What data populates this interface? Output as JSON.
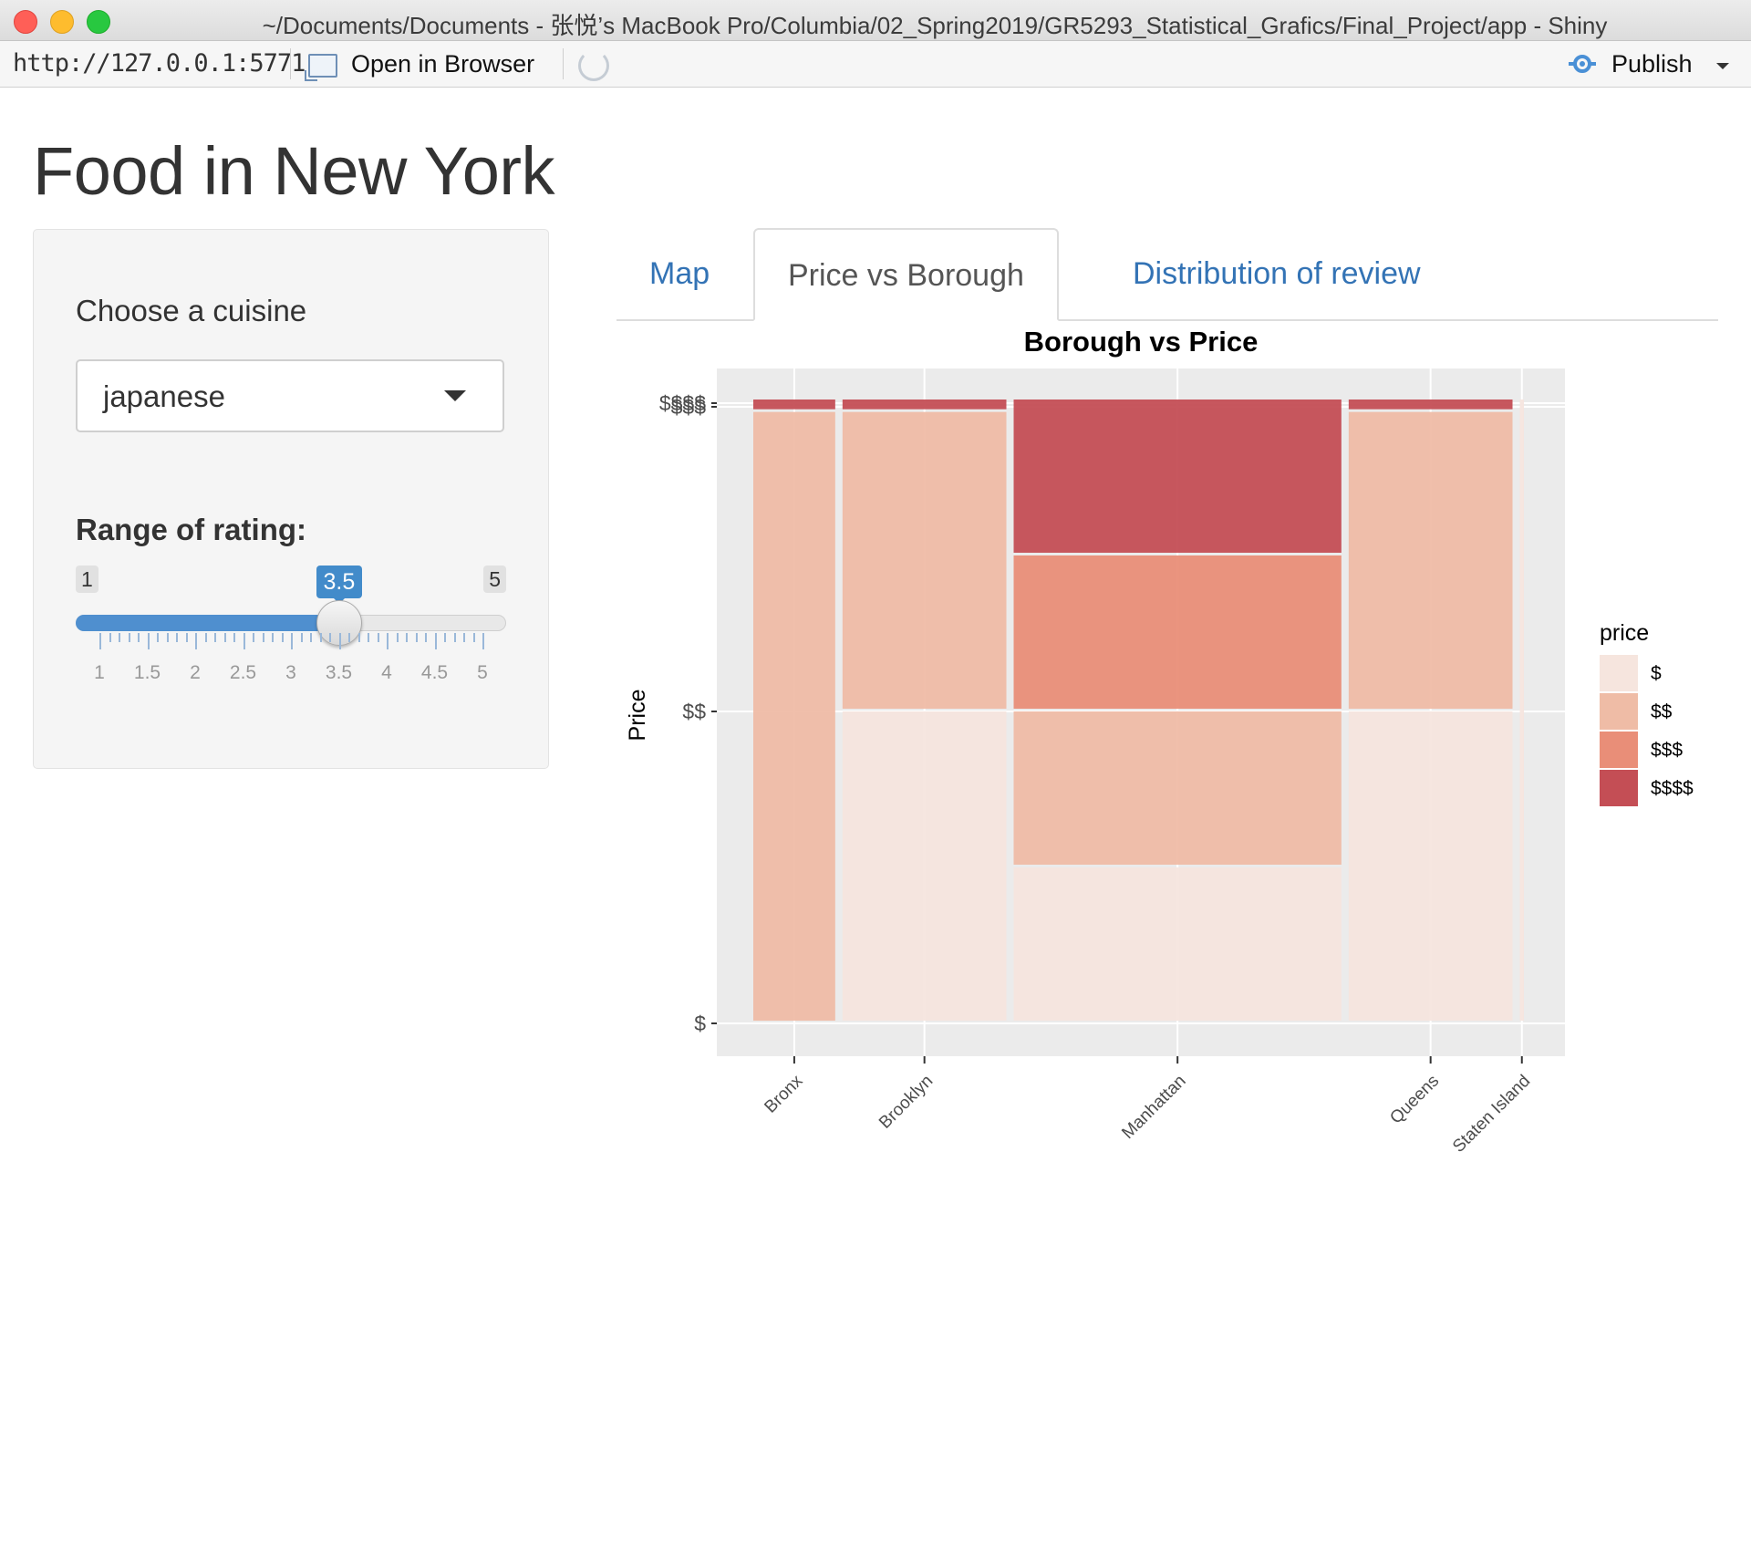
{
  "window": {
    "title": "~/Documents/Documents - 张悦’s MacBook Pro/Columbia/02_Spring2019/GR5293_Statistical_Grafics/Final_Project/app - Shiny"
  },
  "toolbar": {
    "url": "http://127.0.0.1:5771",
    "open_label": "Open in Browser",
    "publish_label": "Publish"
  },
  "page": {
    "title": "Food in New York"
  },
  "sidebar": {
    "cuisine_label": "Choose a cuisine",
    "cuisine_value": "japanese",
    "rating_label": "Range of rating:",
    "slider": {
      "min": 1,
      "max": 5,
      "value": 3.5,
      "min_label": "1",
      "max_label": "5",
      "value_label": "3.5",
      "grid_labels": [
        "1",
        "1.5",
        "2",
        "2.5",
        "3",
        "3.5",
        "4",
        "4.5",
        "5"
      ]
    }
  },
  "tabs": [
    {
      "label": "Map",
      "active": false
    },
    {
      "label": "Price vs Borough",
      "active": true
    },
    {
      "label": "Distribution of review",
      "active": false
    }
  ],
  "chart_data": {
    "type": "mosaic",
    "title": "Borough vs Price",
    "ylabel": "Price",
    "xlabel": "",
    "categories": [
      "Bronx",
      "Brooklyn",
      "Manhattan",
      "Queens",
      "Staten Island"
    ],
    "category_widths": [
      0.1,
      0.2,
      0.4,
      0.2,
      0.005
    ],
    "y_tick_labels": [
      "$",
      "$$",
      "$$$",
      "$$$$"
    ],
    "legend": {
      "title": "price",
      "placement": "right",
      "items": [
        {
          "label": "$",
          "color": "#f6e5de"
        },
        {
          "label": "$$",
          "color": "#efbca6"
        },
        {
          "label": "$$$",
          "color": "#e98e78"
        },
        {
          "label": "$$$$",
          "color": "#c44e55"
        }
      ]
    },
    "series": [
      {
        "name": "$",
        "values": [
          0.0,
          0.5,
          0.25,
          0.5,
          1.0
        ]
      },
      {
        "name": "$$",
        "values": [
          0.98,
          0.48,
          0.25,
          0.48,
          0.0
        ]
      },
      {
        "name": "$$$",
        "values": [
          0.0,
          0.0,
          0.25,
          0.0,
          0.0
        ]
      },
      {
        "name": "$$$$",
        "values": [
          0.02,
          0.02,
          0.25,
          0.02,
          0.0
        ]
      }
    ],
    "panel_background": "#ebebeb",
    "grid": true
  }
}
